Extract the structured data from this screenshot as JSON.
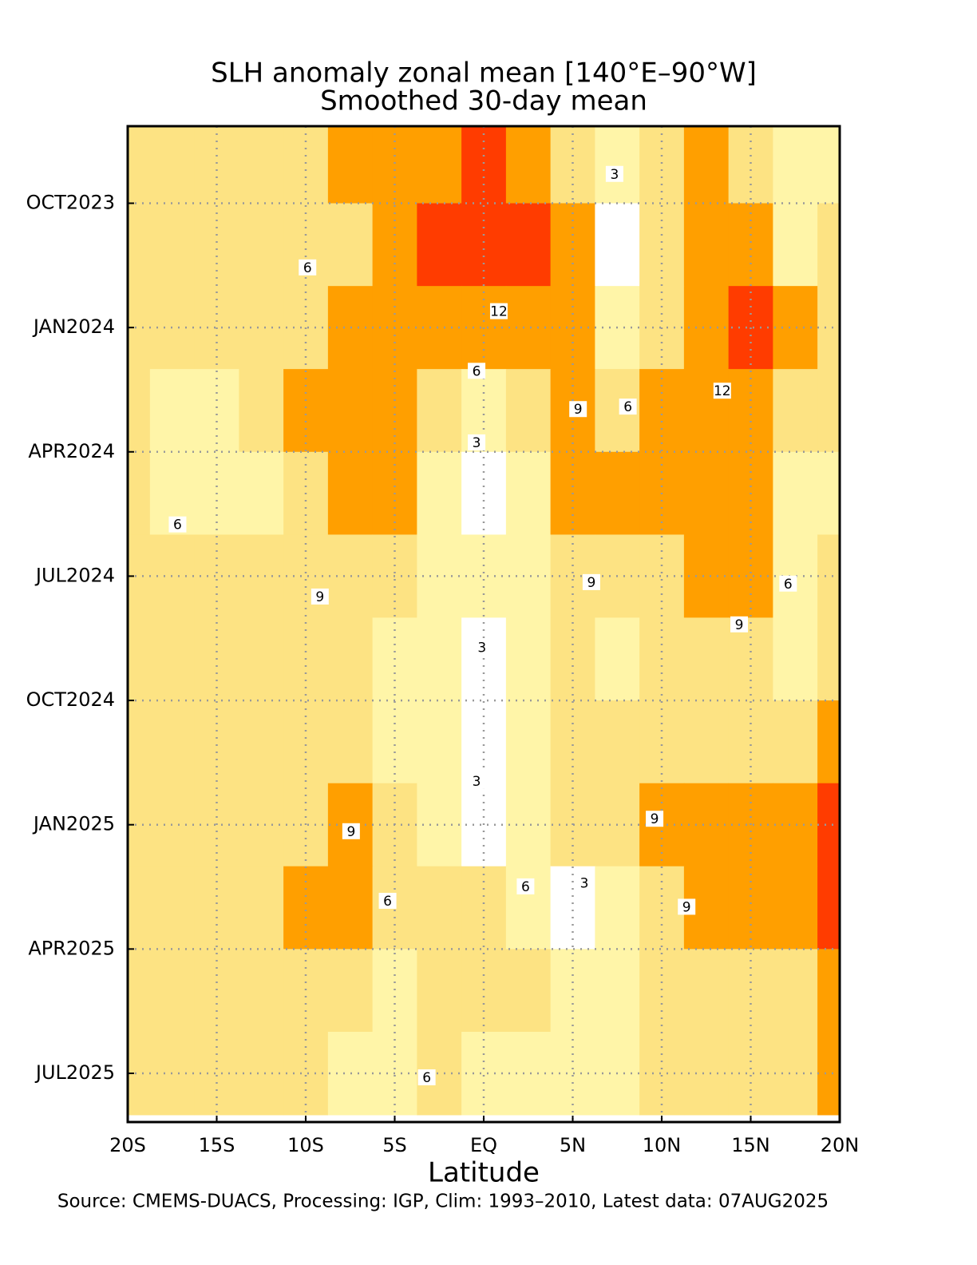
{
  "chart_data": {
    "type": "contour",
    "title": "SLH anomaly zonal mean [140°E–90°W]",
    "subtitle": "Smoothed 30-day mean",
    "x_label": "Latitude",
    "source": "Source: CMEMS-DUACS, Processing: IGP, Clim: 1993–2010, Latest data: 07AUG2025",
    "xlim": [
      -20,
      20
    ],
    "xticks": [
      {
        "value": -20,
        "label": "20S"
      },
      {
        "value": -15,
        "label": "15S"
      },
      {
        "value": -10,
        "label": "10S"
      },
      {
        "value": -5,
        "label": "5S"
      },
      {
        "value": 0,
        "label": "EQ"
      },
      {
        "value": 5,
        "label": "5N"
      },
      {
        "value": 10,
        "label": "10N"
      },
      {
        "value": 15,
        "label": "15N"
      },
      {
        "value": 20,
        "label": "20N"
      }
    ],
    "ylim": [
      2023.595,
      2025.598
    ],
    "yticks": [
      {
        "value": 2023.75,
        "label": "OCT2023"
      },
      {
        "value": 2024.0,
        "label": "JAN2024"
      },
      {
        "value": 2024.25,
        "label": "APR2024"
      },
      {
        "value": 2024.5,
        "label": "JUL2024"
      },
      {
        "value": 2024.75,
        "label": "OCT2024"
      },
      {
        "value": 2025.0,
        "label": "JAN2025"
      },
      {
        "value": 2025.25,
        "label": "APR2025"
      },
      {
        "value": 2025.5,
        "label": "JUL2025"
      }
    ],
    "grid": true,
    "levels": [
      3,
      6,
      9,
      12,
      15
    ],
    "colors": [
      "#ffffff",
      "#fff5a8",
      "#fde383",
      "#ff9f00",
      "#ff3c00",
      "#c00000"
    ],
    "x": [
      -20,
      -17.5,
      -15,
      -12.5,
      -10,
      -7.5,
      -5,
      -2.5,
      0,
      2.5,
      5,
      7.5,
      10,
      12.5,
      15,
      17.5,
      20
    ],
    "y": [
      2023.667,
      2023.833,
      2024.0,
      2024.167,
      2024.333,
      2024.5,
      2024.667,
      2024.833,
      2025.0,
      2025.167,
      2025.333,
      2025.5
    ],
    "z": [
      [
        7,
        7,
        7,
        7,
        7,
        10,
        10,
        11,
        13,
        10,
        7,
        4,
        7,
        10,
        7,
        4,
        5
      ],
      [
        8,
        7,
        7,
        7,
        7,
        8,
        10,
        12.5,
        14,
        13,
        10,
        1,
        7,
        10,
        11,
        5,
        7
      ],
      [
        7.5,
        7,
        7,
        7,
        7,
        9,
        10.5,
        11,
        10.5,
        10,
        9.5,
        4,
        7,
        11,
        12,
        9.5,
        7
      ],
      [
        7,
        5,
        5,
        6.5,
        9.5,
        10.5,
        10,
        6.5,
        5,
        6.5,
        9,
        6.5,
        9.5,
        10.5,
        9.5,
        8,
        7
      ],
      [
        6.5,
        5,
        5,
        5.5,
        8,
        10,
        10,
        5,
        2,
        5,
        10,
        10.5,
        10,
        10.5,
        9.5,
        5.5,
        5
      ],
      [
        7,
        7,
        7,
        7,
        8,
        8.5,
        7,
        5,
        4.5,
        5,
        8,
        7,
        8.5,
        9.5,
        9.5,
        5,
        6.5
      ],
      [
        7,
        7,
        7,
        7,
        7,
        6.5,
        5,
        3.5,
        1.5,
        4,
        6.5,
        5,
        7,
        7,
        7,
        5,
        6
      ],
      [
        7,
        7,
        7,
        7,
        7,
        6.5,
        5,
        3.5,
        2,
        4.5,
        7,
        8.5,
        6.5,
        7.5,
        8,
        8,
        9.5
      ],
      [
        7,
        7,
        7,
        7,
        8,
        9.5,
        6.5,
        4,
        1.5,
        4,
        6,
        8,
        9,
        10,
        10.5,
        10.5,
        12.5
      ],
      [
        7,
        7,
        8,
        7,
        10,
        9,
        6,
        7,
        6.5,
        5,
        2,
        3,
        7,
        9,
        10.5,
        11,
        13
      ],
      [
        8.5,
        7,
        7,
        7,
        7,
        7,
        5,
        7,
        7,
        6.5,
        5,
        4.5,
        6.5,
        8.5,
        7.5,
        8,
        10
      ],
      [
        7,
        7,
        7,
        7,
        6.5,
        5,
        4.5,
        6,
        5,
        4.5,
        5,
        5.5,
        7,
        7,
        7,
        7.5,
        9.5
      ]
    ],
    "contour_labels": [
      {
        "level": 3,
        "lat": 7.35,
        "time": 2023.691
      },
      {
        "level": 6,
        "lat": -9.9,
        "time": 2023.879
      },
      {
        "level": 12,
        "lat": 0.85,
        "time": 2023.967
      },
      {
        "level": 6,
        "lat": -0.4,
        "time": 2024.087
      },
      {
        "level": 12,
        "lat": 13.4,
        "time": 2024.127
      },
      {
        "level": 9,
        "lat": 5.3,
        "time": 2024.164
      },
      {
        "level": 6,
        "lat": 8.1,
        "time": 2024.159
      },
      {
        "level": 3,
        "lat": -0.4,
        "time": 2024.231
      },
      {
        "level": 6,
        "lat": -17.2,
        "time": 2024.396
      },
      {
        "level": 9,
        "lat": -9.2,
        "time": 2024.541
      },
      {
        "level": 9,
        "lat": 6.05,
        "time": 2024.512
      },
      {
        "level": 6,
        "lat": 17.1,
        "time": 2024.515
      },
      {
        "level": 9,
        "lat": 14.35,
        "time": 2024.597
      },
      {
        "level": 3,
        "lat": -0.1,
        "time": 2024.643
      },
      {
        "level": 3,
        "lat": -0.4,
        "time": 2024.912
      },
      {
        "level": 9,
        "lat": 9.6,
        "time": 2024.988
      },
      {
        "level": 9,
        "lat": -7.45,
        "time": 2025.013
      },
      {
        "level": 6,
        "lat": 2.35,
        "time": 2025.124
      },
      {
        "level": 3,
        "lat": 5.65,
        "time": 2025.117
      },
      {
        "level": 6,
        "lat": -5.4,
        "time": 2025.153
      },
      {
        "level": 9,
        "lat": 11.4,
        "time": 2025.165
      },
      {
        "level": 6,
        "lat": -3.2,
        "time": 2025.508
      }
    ]
  }
}
